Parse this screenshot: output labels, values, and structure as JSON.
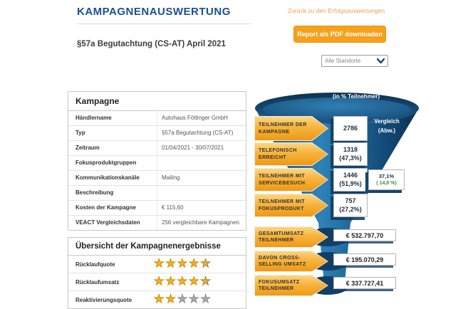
{
  "page": {
    "title": "KAMPAGNENAUSWERTUNG",
    "subtitle": "§57a Begutachtung (CS-AT) April 2021"
  },
  "header": {
    "back_link": "Zurück zu den Erfolgsauswertungen",
    "pdf_button": "Report als PDF downloaden",
    "location_dropdown_value": "Alle Standorte"
  },
  "campaign_table": {
    "header": "Kampagne",
    "rows": [
      {
        "label": "Händlername",
        "value": "Autohaus Föttinger GmbH"
      },
      {
        "label": "Typ",
        "value": "§57a Begutachtung (CS-AT)"
      },
      {
        "label": "Zeitraum",
        "value": "01/04/2021 - 30/07/2021"
      },
      {
        "label": "Fokusproduktgruppen",
        "value": ""
      },
      {
        "label": "Kommunikationskanäle",
        "value": "Mailing"
      },
      {
        "label": "Beschreibung",
        "value": ""
      },
      {
        "label": "Kosten der Kampagne",
        "value": "€ 115,60"
      },
      {
        "label": "VEACT Vergleichsdaten",
        "value": "256 vergleichbare Kampagnen"
      }
    ]
  },
  "results_table": {
    "header": "Übersicht der Kampagnenergebnisse",
    "rows": [
      {
        "label": "Rücklaufquote",
        "rating": 4.5,
        "max_rating": 5
      },
      {
        "label": "Rücklaufumsatz",
        "rating": 4.5,
        "max_rating": 5
      },
      {
        "label": "Reaktivierungsquote",
        "rating": 2,
        "max_rating": 5
      }
    ]
  },
  "funnel": {
    "title": "(in % Teilnehmer)",
    "comparison_header": "Vergleich\n(Abw.)",
    "stages": [
      {
        "label": "TEILNEHMER DER KAMPAGNE",
        "value": "2786",
        "pct": ""
      },
      {
        "label": "TELEFONISCH ERREICHT",
        "value": "1318",
        "pct": "(47,3%)"
      },
      {
        "label": "TEILNEHMER MIT SERVICEBESUCH",
        "value": "1446",
        "pct": "(51,9%)",
        "comparison": {
          "value": "37,1%",
          "deviation": "( 14,8 %)"
        }
      },
      {
        "label": "TEILNEHMER MIT FOKUSPRODUKT",
        "value": "757",
        "pct": "(27,2%)"
      }
    ],
    "revenue": [
      {
        "label": "GESAMTUMSATZ TEILNEHMER",
        "value": "€ 532.797,70"
      },
      {
        "label": "DAVON CROSS- SELLING UMSATZ",
        "value": "€ 195.070,29"
      },
      {
        "label": "FOKUSUMSATZ TEILNEHMER",
        "value": "€ 337.727,41"
      }
    ]
  },
  "icons": {
    "star_glyph": "★"
  },
  "colors": {
    "title_navy": "#1D4F8D",
    "accent_orange": "#F5A11C",
    "funnel_dark_navy": "#0C3557",
    "funnel_light_blue": "#2E7FB5",
    "star_gold": "#F6B51E",
    "star_gray": "#A9A9A9",
    "deviation_green": "#3F8F3F"
  }
}
